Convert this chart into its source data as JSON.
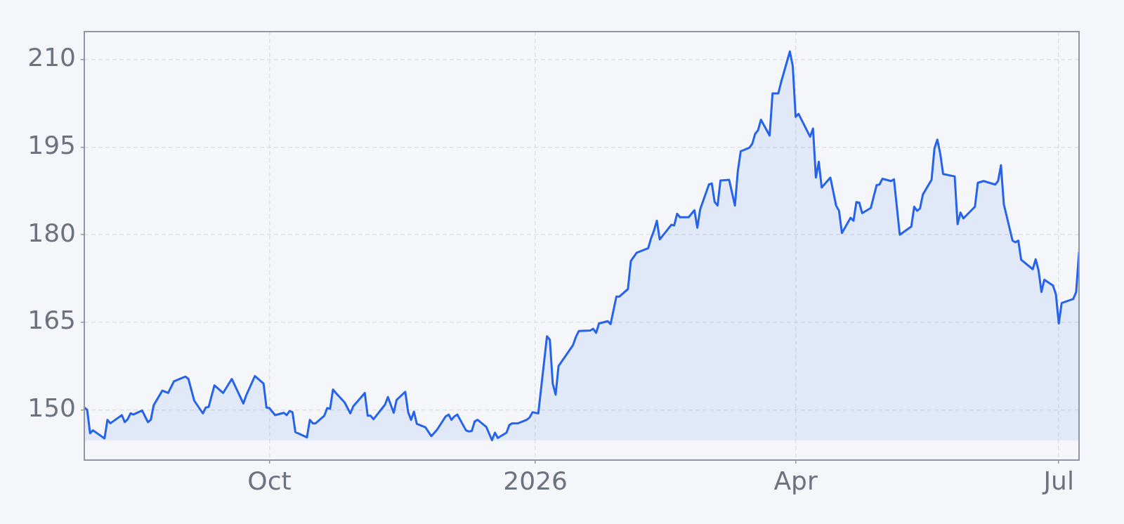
{
  "chart_data": {
    "type": "area",
    "x": [
      "2025-07-29",
      "2025-07-30",
      "2025-07-31",
      "2025-08-01",
      "2025-08-05",
      "2025-08-06",
      "2025-08-07",
      "2025-08-11",
      "2025-08-12",
      "2025-08-13",
      "2025-08-14",
      "2025-08-15",
      "2025-08-18",
      "2025-08-20",
      "2025-08-21",
      "2025-08-22",
      "2025-08-25",
      "2025-08-27",
      "2025-08-29",
      "2025-09-02",
      "2025-09-03",
      "2025-09-05",
      "2025-09-08",
      "2025-09-09",
      "2025-09-10",
      "2025-09-12",
      "2025-09-15",
      "2025-09-18",
      "2025-09-22",
      "2025-09-23",
      "2025-09-26",
      "2025-09-29",
      "2025-09-30",
      "2025-10-01",
      "2025-10-03",
      "2025-10-06",
      "2025-10-07",
      "2025-10-08",
      "2025-10-09",
      "2025-10-10",
      "2025-10-14",
      "2025-10-15",
      "2025-10-16",
      "2025-10-17",
      "2025-10-20",
      "2025-10-21",
      "2025-10-22",
      "2025-10-23",
      "2025-10-24",
      "2025-10-27",
      "2025-10-29",
      "2025-10-30",
      "2025-11-03",
      "2025-11-04",
      "2025-11-05",
      "2025-11-06",
      "2025-11-10",
      "2025-11-11",
      "2025-11-13",
      "2025-11-14",
      "2025-11-17",
      "2025-11-18",
      "2025-11-19",
      "2025-11-20",
      "2025-11-21",
      "2025-11-24",
      "2025-11-26",
      "2025-11-28",
      "2025-12-01",
      "2025-12-02",
      "2025-12-03",
      "2025-12-04",
      "2025-12-05",
      "2025-12-08",
      "2025-12-09",
      "2025-12-10",
      "2025-12-11",
      "2025-12-12",
      "2025-12-15",
      "2025-12-17",
      "2025-12-18",
      "2025-12-19",
      "2025-12-22",
      "2025-12-23",
      "2025-12-24",
      "2025-12-26",
      "2025-12-29",
      "2025-12-30",
      "2025-12-31",
      "2026-01-02",
      "2026-01-05",
      "2026-01-06",
      "2026-01-07",
      "2026-01-08",
      "2026-01-09",
      "2026-01-14",
      "2026-01-15",
      "2026-01-16",
      "2026-01-20",
      "2026-01-21",
      "2026-01-22",
      "2026-01-23",
      "2026-01-26",
      "2026-01-27",
      "2026-01-29",
      "2026-01-30",
      "2026-02-02",
      "2026-02-03",
      "2026-02-05",
      "2026-02-09",
      "2026-02-10",
      "2026-02-11",
      "2026-02-12",
      "2026-02-13",
      "2026-02-17",
      "2026-02-18",
      "2026-02-19",
      "2026-02-20",
      "2026-02-23",
      "2026-02-25",
      "2026-02-26",
      "2026-02-27",
      "2026-03-02",
      "2026-03-03",
      "2026-03-04",
      "2026-03-05",
      "2026-03-06",
      "2026-03-09",
      "2026-03-11",
      "2026-03-12",
      "2026-03-13",
      "2026-03-16",
      "2026-03-17",
      "2026-03-18",
      "2026-03-19",
      "2026-03-20",
      "2026-03-23",
      "2026-03-24",
      "2026-03-26",
      "2026-03-27",
      "2026-03-30",
      "2026-03-31",
      "2026-04-01",
      "2026-04-02",
      "2026-04-06",
      "2026-04-07",
      "2026-04-08",
      "2026-04-09",
      "2026-04-10",
      "2026-04-13",
      "2026-04-15",
      "2026-04-16",
      "2026-04-17",
      "2026-04-20",
      "2026-04-21",
      "2026-04-22",
      "2026-04-23",
      "2026-04-24",
      "2026-04-27",
      "2026-04-29",
      "2026-04-30",
      "2026-05-01",
      "2026-05-04",
      "2026-05-05",
      "2026-05-07",
      "2026-05-11",
      "2026-05-12",
      "2026-05-13",
      "2026-05-14",
      "2026-05-15",
      "2026-05-18",
      "2026-05-19",
      "2026-05-20",
      "2026-05-21",
      "2026-05-22",
      "2026-05-26",
      "2026-05-27",
      "2026-05-28",
      "2026-05-29",
      "2026-06-02",
      "2026-06-03",
      "2026-06-05",
      "2026-06-09",
      "2026-06-10",
      "2026-06-11",
      "2026-06-12",
      "2026-06-15",
      "2026-06-16",
      "2026-06-17",
      "2026-06-18",
      "2026-06-22",
      "2026-06-23",
      "2026-06-24",
      "2026-06-25",
      "2026-06-26",
      "2026-06-29",
      "2026-06-30",
      "2026-07-01",
      "2026-07-02",
      "2026-07-06",
      "2026-07-07",
      "2026-07-08"
    ],
    "series": [
      {
        "color": "#2563eb",
        "values": [
          150.4,
          150.0,
          146.0,
          146.5,
          145.1,
          148.3,
          147.7,
          149.1,
          147.9,
          148.4,
          149.4,
          149.2,
          149.9,
          147.9,
          148.3,
          150.8,
          153.3,
          152.9,
          154.9,
          155.7,
          155.3,
          151.6,
          149.4,
          150.4,
          150.5,
          154.2,
          152.9,
          155.3,
          151.1,
          152.5,
          155.8,
          154.5,
          150.4,
          150.3,
          149.1,
          149.5,
          149.1,
          149.8,
          149.6,
          146.2,
          145.3,
          148.3,
          147.7,
          147.7,
          149.0,
          150.3,
          150.2,
          153.5,
          152.9,
          151.3,
          149.4,
          150.6,
          152.9,
          149.0,
          149.0,
          148.4,
          150.9,
          152.2,
          149.5,
          151.7,
          153.1,
          149.6,
          148.3,
          149.7,
          147.6,
          147.0,
          145.5,
          146.6,
          148.9,
          149.2,
          148.3,
          148.9,
          149.2,
          146.5,
          146.3,
          146.4,
          148.0,
          148.3,
          147.1,
          144.8,
          146.1,
          145.2,
          146.1,
          147.4,
          147.7,
          147.7,
          148.3,
          148.7,
          149.6,
          149.4,
          162.6,
          162.0,
          154.5,
          152.6,
          157.5,
          161.1,
          162.5,
          163.5,
          163.6,
          163.9,
          163.2,
          164.8,
          165.2,
          164.7,
          169.4,
          169.4,
          170.7,
          175.5,
          176.9,
          177.7,
          179.4,
          180.7,
          182.4,
          179.2,
          181.7,
          181.6,
          183.6,
          183.0,
          183.0,
          184.2,
          181.2,
          184.4,
          188.6,
          188.8,
          185.6,
          185.0,
          189.3,
          189.4,
          185.0,
          190.9,
          194.3,
          194.9,
          195.6,
          197.3,
          197.9,
          199.7,
          197.0,
          204.2,
          204.2,
          206.2,
          211.4,
          208.9,
          200.2,
          200.7,
          196.8,
          198.2,
          189.8,
          192.5,
          188.1,
          189.8,
          185.0,
          184.1,
          180.3,
          182.9,
          182.4,
          185.6,
          185.5,
          183.7,
          184.6,
          188.5,
          188.6,
          189.6,
          189.2,
          189.5,
          180.0,
          181.4,
          184.8,
          184.1,
          184.5,
          186.9,
          189.4,
          194.8,
          196.3,
          193.9,
          190.4,
          190.0,
          181.8,
          183.8,
          182.8,
          184.8,
          188.9,
          189.2,
          188.6,
          189.2,
          191.9,
          185.2,
          179.0,
          178.7,
          179.0,
          175.7,
          174.1,
          175.8,
          173.9,
          170.2,
          172.3,
          171.3,
          169.8,
          164.8,
          168.3,
          169.0,
          170.2,
          177.0
        ]
      }
    ],
    "xlim": [
      "2025-07-29",
      "2026-07-08"
    ],
    "ylim": [
      141.4,
      214.8
    ],
    "xticks": [
      {
        "value": "2025-10-01",
        "label": "Oct"
      },
      {
        "value": "2026-01-01",
        "label": "2026"
      },
      {
        "value": "2026-04-01",
        "label": "Apr"
      },
      {
        "value": "2026-07-01",
        "label": "Jul"
      }
    ],
    "yticks": [
      150,
      165,
      180,
      195,
      210
    ],
    "grid": true,
    "line_style": "solid"
  }
}
